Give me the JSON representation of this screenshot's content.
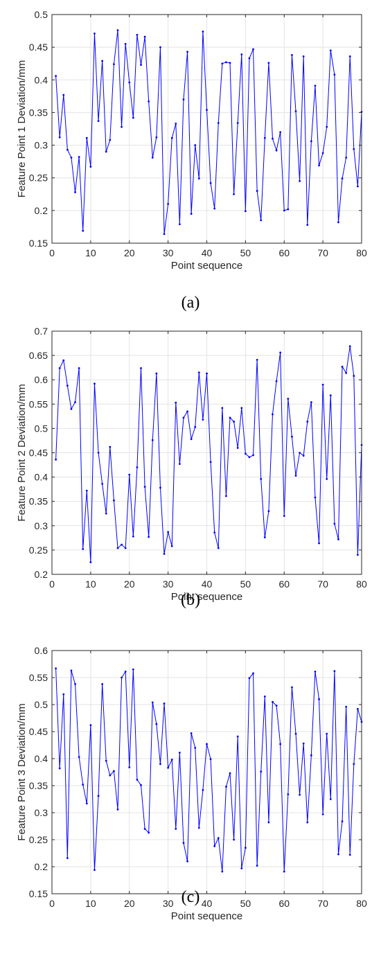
{
  "chart_data": [
    {
      "type": "line",
      "panel_label": "(a)",
      "xlabel": "Point sequence",
      "ylabel": "Feature Point 1 Deviation/mm",
      "xlim": [
        0,
        80
      ],
      "ylim": [
        0.15,
        0.5
      ],
      "xticks": [
        0,
        10,
        20,
        30,
        40,
        50,
        60,
        70,
        80
      ],
      "yticks": [
        0.15,
        0.2,
        0.25,
        0.3,
        0.35,
        0.4,
        0.45,
        0.5
      ],
      "ytick_labels": [
        "0.15",
        "0.2",
        "0.25",
        "0.3",
        "0.35",
        "0.4",
        "0.45",
        "0.5"
      ],
      "grid": true,
      "color": "#0000ff",
      "x": [
        1,
        2,
        3,
        4,
        5,
        6,
        7,
        8,
        9,
        10,
        11,
        12,
        13,
        14,
        15,
        16,
        17,
        18,
        19,
        20,
        21,
        22,
        23,
        24,
        25,
        26,
        27,
        28,
        29,
        30,
        31,
        32,
        33,
        34,
        35,
        36,
        37,
        38,
        39,
        40,
        41,
        42,
        43,
        44,
        45,
        46,
        47,
        48,
        49,
        50,
        51,
        52,
        53,
        54,
        55,
        56,
        57,
        58,
        59,
        60,
        61,
        62,
        63,
        64,
        65,
        66,
        67,
        68,
        69,
        70,
        71,
        72,
        73,
        74,
        75,
        76,
        77,
        78,
        79,
        80
      ],
      "y": [
        0.406,
        0.312,
        0.377,
        0.293,
        0.281,
        0.228,
        0.282,
        0.169,
        0.311,
        0.267,
        0.471,
        0.337,
        0.429,
        0.29,
        0.308,
        0.424,
        0.476,
        0.328,
        0.455,
        0.396,
        0.342,
        0.469,
        0.423,
        0.466,
        0.367,
        0.281,
        0.312,
        0.45,
        0.164,
        0.21,
        0.311,
        0.333,
        0.179,
        0.37,
        0.443,
        0.195,
        0.3,
        0.249,
        0.474,
        0.354,
        0.242,
        0.203,
        0.334,
        0.425,
        0.427,
        0.426,
        0.225,
        0.334,
        0.439,
        0.199,
        0.433,
        0.447,
        0.23,
        0.185,
        0.311,
        0.426,
        0.31,
        0.292,
        0.32,
        0.2,
        0.202,
        0.438,
        0.352,
        0.245,
        0.436,
        0.178,
        0.306,
        0.391,
        0.269,
        0.288,
        0.328,
        0.445,
        0.408,
        0.182,
        0.249,
        0.281,
        0.436,
        0.294,
        0.237,
        0.351
      ]
    },
    {
      "type": "line",
      "panel_label": "(b)",
      "xlabel": "Point sequence",
      "ylabel": "Feature Point 2 Deviation/mm",
      "xlim": [
        0,
        80
      ],
      "ylim": [
        0.2,
        0.7
      ],
      "xticks": [
        0,
        10,
        20,
        30,
        40,
        50,
        60,
        70,
        80
      ],
      "yticks": [
        0.2,
        0.25,
        0.3,
        0.35,
        0.4,
        0.45,
        0.5,
        0.55,
        0.6,
        0.65,
        0.7
      ],
      "ytick_labels": [
        "0.2",
        "0.25",
        "0.3",
        "0.35",
        "0.4",
        "0.45",
        "0.5",
        "0.55",
        "0.6",
        "0.65",
        "0.7"
      ],
      "grid": true,
      "color": "#0000ff",
      "x": [
        1,
        2,
        3,
        4,
        5,
        6,
        7,
        8,
        9,
        10,
        11,
        12,
        13,
        14,
        15,
        16,
        17,
        18,
        19,
        20,
        21,
        22,
        23,
        24,
        25,
        26,
        27,
        28,
        29,
        30,
        31,
        32,
        33,
        34,
        35,
        36,
        37,
        38,
        39,
        40,
        41,
        42,
        43,
        44,
        45,
        46,
        47,
        48,
        49,
        50,
        51,
        52,
        53,
        54,
        55,
        56,
        57,
        58,
        59,
        60,
        61,
        62,
        63,
        64,
        65,
        66,
        67,
        68,
        69,
        70,
        71,
        72,
        73,
        74,
        75,
        76,
        77,
        78,
        79,
        80
      ],
      "y": [
        0.436,
        0.624,
        0.64,
        0.588,
        0.54,
        0.554,
        0.624,
        0.252,
        0.372,
        0.225,
        0.592,
        0.45,
        0.386,
        0.325,
        0.462,
        0.352,
        0.254,
        0.261,
        0.254,
        0.405,
        0.278,
        0.42,
        0.624,
        0.38,
        0.277,
        0.476,
        0.613,
        0.378,
        0.242,
        0.287,
        0.258,
        0.553,
        0.427,
        0.522,
        0.535,
        0.478,
        0.503,
        0.615,
        0.518,
        0.613,
        0.431,
        0.286,
        0.254,
        0.542,
        0.361,
        0.522,
        0.514,
        0.46,
        0.542,
        0.448,
        0.441,
        0.445,
        0.641,
        0.396,
        0.276,
        0.33,
        0.529,
        0.597,
        0.656,
        0.32,
        0.561,
        0.483,
        0.403,
        0.45,
        0.444,
        0.514,
        0.554,
        0.358,
        0.264,
        0.59,
        0.396,
        0.568,
        0.304,
        0.272,
        0.627,
        0.614,
        0.669,
        0.608,
        0.24,
        0.466
      ]
    },
    {
      "type": "line",
      "panel_label": "(c)",
      "xlabel": "Point sequence",
      "ylabel": "Feature Point 3 Deviation/mm",
      "xlim": [
        0,
        80
      ],
      "ylim": [
        0.15,
        0.6
      ],
      "xticks": [
        0,
        10,
        20,
        30,
        40,
        50,
        60,
        70,
        80
      ],
      "yticks": [
        0.15,
        0.2,
        0.25,
        0.3,
        0.35,
        0.4,
        0.45,
        0.5,
        0.55,
        0.6
      ],
      "ytick_labels": [
        "0.15",
        "0.2",
        "0.25",
        "0.3",
        "0.35",
        "0.4",
        "0.45",
        "0.5",
        "0.55",
        "0.6"
      ],
      "grid": true,
      "color": "#0000ff",
      "x": [
        1,
        2,
        3,
        4,
        5,
        6,
        7,
        8,
        9,
        10,
        11,
        12,
        13,
        14,
        15,
        16,
        17,
        18,
        19,
        20,
        21,
        22,
        23,
        24,
        25,
        26,
        27,
        28,
        29,
        30,
        31,
        32,
        33,
        34,
        35,
        36,
        37,
        38,
        39,
        40,
        41,
        42,
        43,
        44,
        45,
        46,
        47,
        48,
        49,
        50,
        51,
        52,
        53,
        54,
        55,
        56,
        57,
        58,
        59,
        60,
        61,
        62,
        63,
        64,
        65,
        66,
        67,
        68,
        69,
        70,
        71,
        72,
        73,
        74,
        75,
        76,
        77,
        78,
        79,
        80
      ],
      "y": [
        0.567,
        0.382,
        0.519,
        0.216,
        0.563,
        0.538,
        0.403,
        0.352,
        0.317,
        0.462,
        0.194,
        0.331,
        0.538,
        0.396,
        0.369,
        0.377,
        0.306,
        0.55,
        0.561,
        0.384,
        0.565,
        0.361,
        0.351,
        0.27,
        0.263,
        0.504,
        0.464,
        0.39,
        0.502,
        0.383,
        0.398,
        0.27,
        0.411,
        0.244,
        0.21,
        0.447,
        0.42,
        0.272,
        0.342,
        0.427,
        0.399,
        0.238,
        0.253,
        0.191,
        0.348,
        0.373,
        0.25,
        0.441,
        0.197,
        0.235,
        0.549,
        0.558,
        0.202,
        0.376,
        0.515,
        0.282,
        0.505,
        0.498,
        0.427,
        0.191,
        0.334,
        0.532,
        0.446,
        0.333,
        0.428,
        0.282,
        0.406,
        0.561,
        0.51,
        0.297,
        0.446,
        0.325,
        0.562,
        0.223,
        0.284,
        0.496,
        0.222,
        0.39,
        0.492,
        0.468
      ]
    }
  ]
}
